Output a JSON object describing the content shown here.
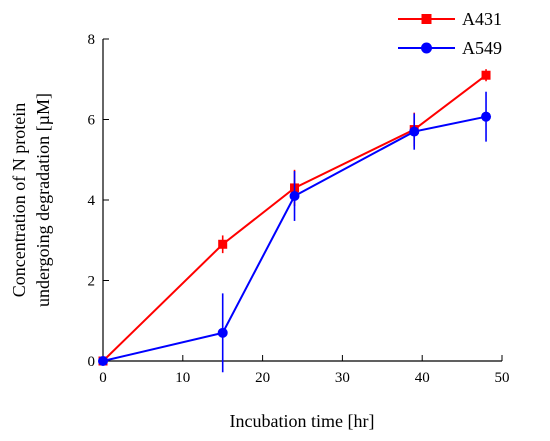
{
  "chart_data": {
    "type": "line",
    "xlabel": "Incubation time [hr]",
    "ylabel_lines": [
      "Concentration of N protein",
      "undergoing degradation [µM]"
    ],
    "xlim": [
      0,
      50
    ],
    "ylim": [
      0,
      8
    ],
    "x_ticks": [
      0,
      10,
      20,
      30,
      40,
      50
    ],
    "y_ticks": [
      0,
      2,
      4,
      6,
      8
    ],
    "grid": false,
    "legend_position": "top-right",
    "series": [
      {
        "name": "A431",
        "color": "#ff0000",
        "marker": "square",
        "x": [
          0,
          15,
          24,
          39,
          48
        ],
        "y": [
          0,
          2.9,
          4.3,
          5.75,
          7.1
        ],
        "err": [
          0,
          0.22,
          0.45,
          0.42,
          0.15
        ]
      },
      {
        "name": "A549",
        "color": "#0000ff",
        "marker": "circle",
        "x": [
          0,
          15,
          24,
          39,
          48
        ],
        "y": [
          0,
          0.7,
          4.1,
          5.7,
          6.07
        ],
        "err": [
          0,
          0.98,
          0.62,
          0.45,
          0.62
        ]
      }
    ]
  }
}
